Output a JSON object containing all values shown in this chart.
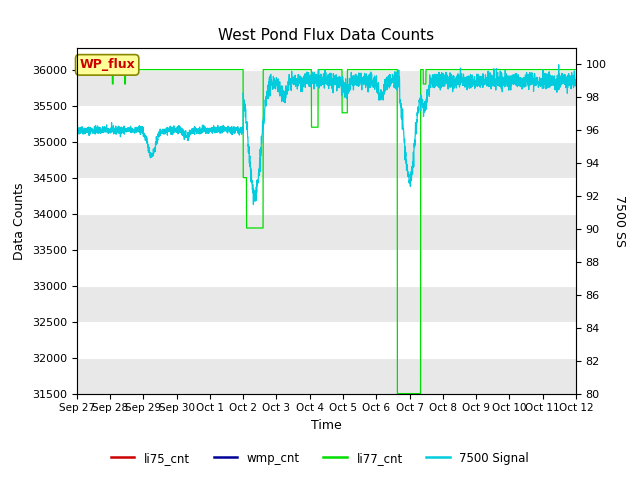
{
  "title": "West Pond Flux Data Counts",
  "xlabel": "Time",
  "ylabel_left": "Data Counts",
  "ylabel_right": "7500 SS",
  "ylim_left": [
    31500,
    36300
  ],
  "ylim_right": [
    80,
    101
  ],
  "fig_facecolor": "#ffffff",
  "plot_bg_color": "#f0f0f0",
  "li77_cnt_color": "#00dd00",
  "cyan_color": "#00ccdd",
  "red_color": "#cc0000",
  "blue_color": "#000099",
  "wp_flux_label_color": "#cc0000",
  "wp_flux_box_color": "#ffff99",
  "legend_labels": [
    "li75_cnt",
    "wmp_cnt",
    "li77_cnt",
    "7500 Signal"
  ],
  "x_tick_labels": [
    "Sep 27",
    "Sep 28",
    "Sep 29",
    "Sep 30",
    "Oct 1",
    "Oct 2",
    "Oct 3",
    "Oct 4",
    "Oct 5",
    "Oct 6",
    "Oct 7",
    "Oct 8",
    "Oct 9",
    "Oct 10",
    "Oct 11",
    "Oct 12"
  ],
  "yticks_left": [
    31500,
    32000,
    32500,
    33000,
    33500,
    34000,
    34500,
    35000,
    35500,
    36000
  ],
  "yticks_right": [
    80,
    82,
    84,
    86,
    88,
    90,
    92,
    94,
    96,
    98,
    100
  ]
}
